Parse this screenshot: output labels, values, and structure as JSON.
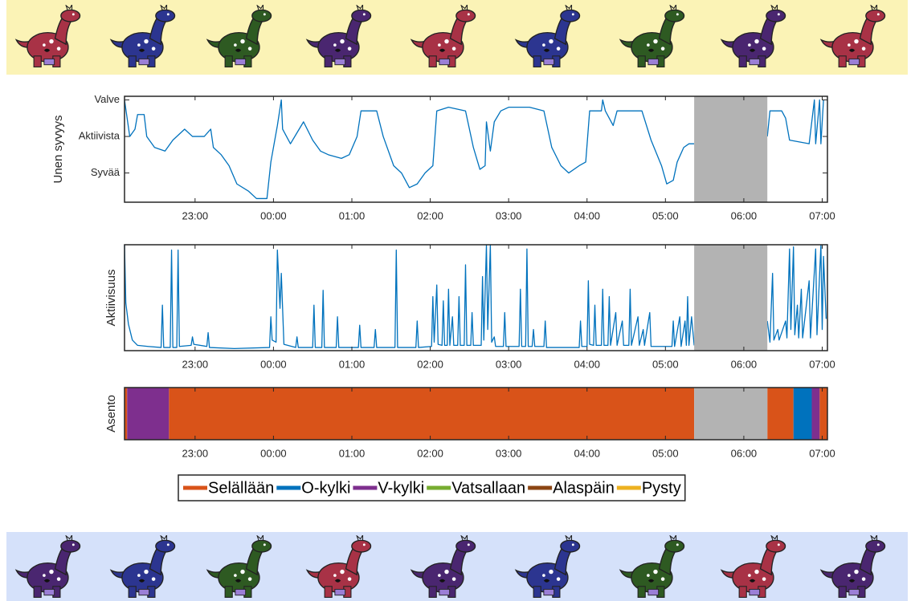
{
  "chart_data": [
    {
      "type": "line",
      "ylabel": "Unen syvyys",
      "color": "#0072bd",
      "xlim": [
        "22:06",
        "07:04"
      ],
      "xticks": [
        "23:00",
        "00:00",
        "01:00",
        "02:00",
        "03:00",
        "04:00",
        "05:00",
        "06:00",
        "07:00"
      ],
      "ylim": [
        0.2,
        3.1
      ],
      "yticks": [
        {
          "value": 3,
          "label": "Valve"
        },
        {
          "value": 2,
          "label": "Aktiivista"
        },
        {
          "value": 1,
          "label": "Syvää"
        }
      ],
      "missing": {
        "start": "05:22",
        "end": "06:18",
        "color": "#b3b3b3"
      },
      "x": [
        "22:06",
        "22:10",
        "22:14",
        "22:16",
        "22:21",
        "22:23",
        "22:29",
        "22:37",
        "22:43",
        "22:52",
        "22:58",
        "23:07",
        "23:12",
        "23:14",
        "23:20",
        "23:26",
        "23:32",
        "23:41",
        "23:47",
        "23:55",
        "23:58",
        "00:03",
        "00:06",
        "00:07",
        "00:13",
        "00:18",
        "00:23",
        "00:30",
        "00:36",
        "00:42",
        "00:52",
        "00:58",
        "01:04",
        "01:07",
        "01:19",
        "01:24",
        "01:32",
        "01:38",
        "01:44",
        "01:50",
        "01:56",
        "02:02",
        "02:05",
        "02:14",
        "02:27",
        "02:33",
        "02:38",
        "02:42",
        "02:43",
        "02:46",
        "02:49",
        "02:54",
        "03:00",
        "03:16",
        "03:27",
        "03:33",
        "03:40",
        "03:46",
        "03:54",
        "03:59",
        "04:02",
        "04:11",
        "04:12",
        "04:14",
        "04:20",
        "04:23",
        "04:42",
        "04:49",
        "04:57",
        "05:01",
        "05:06",
        "05:09",
        "05:14",
        "05:18",
        "05:22",
        "05:50",
        "06:18",
        "06:20",
        "06:29",
        "06:32",
        "06:35",
        "06:50",
        "06:54",
        "06:55",
        "06:58",
        "06:59",
        "07:01"
      ],
      "values": [
        3.0,
        2.0,
        2.2,
        2.6,
        2.6,
        2.0,
        1.7,
        1.6,
        1.9,
        2.2,
        2.0,
        2.0,
        2.2,
        1.7,
        1.5,
        1.2,
        0.7,
        0.5,
        0.3,
        0.3,
        1.3,
        2.3,
        3.0,
        2.2,
        1.8,
        2.1,
        2.4,
        1.9,
        1.6,
        1.5,
        1.4,
        1.5,
        2.0,
        2.7,
        2.7,
        2.0,
        1.2,
        1.0,
        0.6,
        0.7,
        1.0,
        1.2,
        2.7,
        2.8,
        2.7,
        1.7,
        1.1,
        1.2,
        2.4,
        1.6,
        2.4,
        2.7,
        2.8,
        2.8,
        2.7,
        1.7,
        1.2,
        1.0,
        1.2,
        1.3,
        2.7,
        2.7,
        3.0,
        2.7,
        2.3,
        2.7,
        2.7,
        1.9,
        1.2,
        0.7,
        0.8,
        1.3,
        1.7,
        1.8,
        1.8,
        null,
        2.0,
        2.7,
        2.7,
        2.5,
        1.9,
        1.8,
        3.0,
        1.8,
        3.0,
        1.8,
        3.0
      ]
    },
    {
      "type": "line",
      "ylabel": "Aktiivisuus",
      "color": "#0072bd",
      "xlim": [
        "22:06",
        "07:04"
      ],
      "xticks": [
        "23:00",
        "00:00",
        "01:00",
        "02:00",
        "03:00",
        "04:00",
        "05:00",
        "06:00",
        "07:00"
      ],
      "ylim": [
        0,
        100
      ],
      "missing": {
        "start": "05:22",
        "end": "06:18",
        "color": "#b3b3b3"
      },
      "x": [
        "22:06",
        "22:07",
        "22:09",
        "22:12",
        "22:16",
        "22:24",
        "22:34",
        "22:35",
        "22:36",
        "22:41",
        "22:42",
        "22:43",
        "22:46",
        "22:47",
        "22:48",
        "22:57",
        "22:58",
        "22:59",
        "23:09",
        "23:10",
        "23:11",
        "23:30",
        "23:57",
        "23:58",
        "23:59",
        "00:02",
        "00:03",
        "00:05",
        "00:06",
        "00:08",
        "00:17",
        "00:18",
        "00:19",
        "00:30",
        "00:31",
        "00:32",
        "00:37",
        "00:38",
        "00:39",
        "00:48",
        "00:49",
        "00:50",
        "01:05",
        "01:06",
        "01:07",
        "01:17",
        "01:18",
        "01:19",
        "01:33",
        "01:34",
        "01:35",
        "01:49",
        "01:50",
        "01:51",
        "02:01",
        "02:02",
        "02:03",
        "02:05",
        "02:06",
        "02:09",
        "02:10",
        "02:11",
        "02:13",
        "02:14",
        "02:15",
        "02:17",
        "02:18",
        "02:21",
        "02:22",
        "02:23",
        "02:26",
        "02:27",
        "02:28",
        "02:31",
        "02:32",
        "02:33",
        "02:39",
        "02:40",
        "02:41",
        "02:43",
        "02:44",
        "02:46",
        "02:47",
        "02:49",
        "02:50",
        "02:56",
        "02:57",
        "02:58",
        "03:08",
        "03:09",
        "03:10",
        "03:13",
        "03:14",
        "03:15",
        "03:18",
        "03:19",
        "03:20",
        "03:27",
        "03:28",
        "03:29",
        "03:54",
        "03:55",
        "03:56",
        "04:00",
        "04:01",
        "04:02",
        "04:05",
        "04:06",
        "04:07",
        "04:11",
        "04:12",
        "04:13",
        "04:16",
        "04:17",
        "04:18",
        "04:22",
        "04:23",
        "04:27",
        "04:28",
        "04:32",
        "04:33",
        "04:34",
        "04:39",
        "04:40",
        "04:43",
        "04:44",
        "04:48",
        "04:49",
        "05:05",
        "05:06",
        "05:07",
        "05:11",
        "05:12",
        "05:15",
        "05:16",
        "05:17",
        "05:18",
        "05:20",
        "05:22",
        "05:50",
        "06:18",
        "06:20",
        "06:22",
        "06:23",
        "06:26",
        "06:27",
        "06:32",
        "06:33",
        "06:35",
        "06:36",
        "06:38",
        "06:39",
        "06:41",
        "06:42",
        "06:44",
        "06:45",
        "06:50",
        "06:51",
        "06:55",
        "06:56",
        "06:59",
        "07:00",
        "07:01",
        "07:03"
      ],
      "values": [
        100,
        45,
        25,
        10,
        5,
        4,
        3,
        43,
        3,
        3,
        95,
        3,
        3,
        95,
        4,
        5,
        13,
        6,
        4,
        17,
        3,
        2,
        3,
        32,
        10,
        8,
        95,
        40,
        73,
        6,
        3,
        13,
        3,
        3,
        43,
        3,
        3,
        57,
        3,
        3,
        32,
        3,
        3,
        24,
        3,
        3,
        20,
        3,
        3,
        95,
        3,
        3,
        28,
        3,
        4,
        51,
        8,
        62,
        6,
        5,
        47,
        5,
        5,
        58,
        5,
        32,
        5,
        5,
        51,
        5,
        5,
        81,
        5,
        5,
        36,
        5,
        5,
        70,
        10,
        100,
        20,
        100,
        8,
        13,
        4,
        4,
        36,
        4,
        4,
        58,
        4,
        4,
        96,
        4,
        4,
        20,
        4,
        4,
        28,
        3,
        3,
        28,
        4,
        4,
        66,
        6,
        5,
        43,
        5,
        5,
        58,
        5,
        5,
        51,
        5,
        36,
        5,
        28,
        5,
        5,
        58,
        5,
        32,
        5,
        20,
        5,
        36,
        4,
        4,
        28,
        4,
        32,
        4,
        28,
        5,
        51,
        5,
        32,
        5,
        null,
        28,
        8,
        73,
        10,
        20,
        10,
        28,
        12,
        96,
        20,
        98,
        15,
        43,
        12,
        58,
        12,
        66,
        12,
        96,
        15,
        100,
        20,
        89,
        30
      ]
    },
    {
      "type": "timeline",
      "ylabel": "Asento",
      "xlim": [
        "22:06",
        "07:04"
      ],
      "xticks": [
        "23:00",
        "00:00",
        "01:00",
        "02:00",
        "03:00",
        "04:00",
        "05:00",
        "06:00",
        "07:00"
      ],
      "missing": {
        "start": "05:22",
        "end": "06:18",
        "color": "#b3b3b3"
      },
      "series": [
        {
          "name": "Selällään",
          "color": "#d95319",
          "intervals": [
            [
              "22:06",
              "22:08"
            ],
            [
              "22:40",
              "05:22"
            ],
            [
              "06:18",
              "06:38"
            ],
            [
              "06:58",
              "07:04"
            ]
          ]
        },
        {
          "name": "O-kylki",
          "color": "#0072bd",
          "intervals": [
            [
              "06:38",
              "06:52"
            ]
          ]
        },
        {
          "name": "V-kylki",
          "color": "#7e2f8e",
          "intervals": [
            [
              "22:08",
              "22:40"
            ],
            [
              "06:52",
              "06:58"
            ]
          ]
        },
        {
          "name": "Vatsallaan",
          "color": "#77ac30",
          "intervals": []
        },
        {
          "name": "Alaspäin",
          "color": "#8b4513",
          "intervals": []
        },
        {
          "name": "Pysty",
          "color": "#edb120",
          "intervals": []
        }
      ]
    }
  ]
}
